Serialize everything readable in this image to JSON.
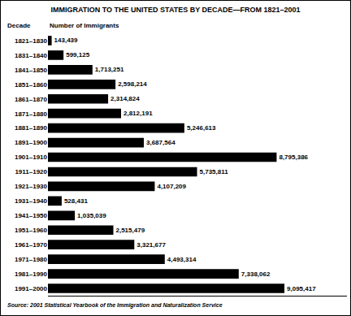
{
  "chart_data": {
    "type": "bar",
    "orientation": "horizontal",
    "title": "IMMIGRATION TO THE UNITED STATES BY DECADE—FROM 1821–2001",
    "ylabel": "Decade",
    "xlabel": "Number of Immigrants",
    "source": "Source: 2001 Statistical Yearbook of the Immigration and Naturalization Service",
    "categories": [
      "1821–1830",
      "1831–1840",
      "1841–1850",
      "1851–1860",
      "1861–1870",
      "1871–1880",
      "1881–1890",
      "1891–1900",
      "1901–1910",
      "1911–1920",
      "1921–1930",
      "1931–1940",
      "1941–1950",
      "1951–1960",
      "1961–1970",
      "1971–1980",
      "1981–1990",
      "1991–2000"
    ],
    "values": [
      143439,
      599125,
      1713251,
      2598214,
      2314824,
      2812191,
      5246613,
      3687564,
      8795386,
      5735811,
      4107209,
      528431,
      1035039,
      2515479,
      3321677,
      4493314,
      7338062,
      9095417
    ],
    "value_labels": [
      "143,439",
      "599,125",
      "1,713,251",
      "2,598,214",
      "2,314,824",
      "2,812,191",
      "5,246,613",
      "3,687,564",
      "8,795,386",
      "5,735,811",
      "4,107,209",
      "528,431",
      "1,035,039",
      "2,515,479",
      "3,321,677",
      "4,493,314",
      "7,338,062",
      "9,095,417"
    ],
    "color": "#000000",
    "xlim": [
      0,
      11500000
    ],
    "data_labels": true,
    "tick_labels": "y",
    "grid": false
  }
}
